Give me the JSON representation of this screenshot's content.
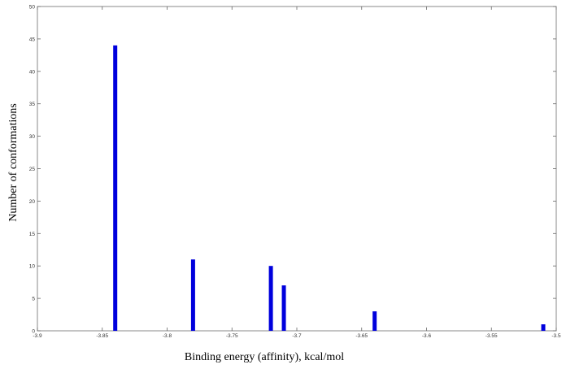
{
  "chart_data": {
    "type": "bar",
    "title": "",
    "xlabel": "Binding energy (affinity), kcal/mol",
    "ylabel": "Number of conformations",
    "xlim": [
      -3.9,
      -3.5
    ],
    "ylim": [
      0,
      50
    ],
    "xticks": [
      -3.9,
      -3.85,
      -3.8,
      -3.75,
      -3.7,
      -3.65,
      -3.6,
      -3.55,
      -3.5
    ],
    "yticks": [
      0,
      5,
      10,
      15,
      20,
      25,
      30,
      35,
      40,
      45,
      50
    ],
    "grid": false,
    "bar_color": "#0000dd",
    "x": [
      -3.84,
      -3.78,
      -3.72,
      -3.71,
      -3.64,
      -3.51
    ],
    "values": [
      44,
      11,
      10,
      7,
      3,
      1
    ]
  }
}
